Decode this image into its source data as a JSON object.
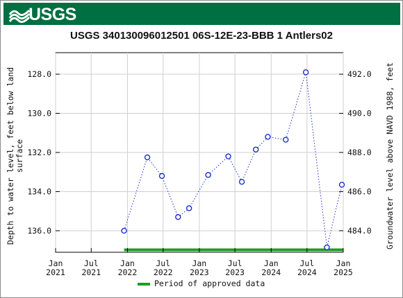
{
  "header": {
    "logo_text": "USGS",
    "brand_color": "#006f41",
    "logo_icon": "usgs-wave-icon"
  },
  "chart_data": {
    "type": "scatter",
    "title": "USGS 340130096012501 06S-12E-23-BBB 1 Antlers02",
    "ylabel_left_line1": "Depth to water level, feet below land",
    "ylabel_left_line2": "surface",
    "ylabel_right": "Groundwater level above NAVD 1988, feet",
    "y_left": {
      "range": [
        137.1,
        126.9
      ],
      "inverted": true,
      "ticks": [
        128.0,
        130.0,
        132.0,
        134.0,
        136.0
      ],
      "tick_labels": [
        "128.0",
        "130.0",
        "132.0",
        "134.0",
        "136.0"
      ]
    },
    "y_right": {
      "range": [
        482.9,
        493.1
      ],
      "ticks": [
        484.0,
        486.0,
        488.0,
        490.0,
        492.0
      ],
      "tick_labels": [
        "484.0",
        "486.0",
        "488.0",
        "490.0",
        "492.0"
      ]
    },
    "x_axis": {
      "range": [
        "2021-01-01",
        "2025-01-01"
      ],
      "ticks": [
        {
          "date": "2021-01-01",
          "line1": "Jan",
          "line2": "2021"
        },
        {
          "date": "2021-07-01",
          "line1": "Jul",
          "line2": "2021"
        },
        {
          "date": "2022-01-01",
          "line1": "Jan",
          "line2": "2022"
        },
        {
          "date": "2022-07-01",
          "line1": "Jul",
          "line2": "2022"
        },
        {
          "date": "2023-01-01",
          "line1": "Jan",
          "line2": "2023"
        },
        {
          "date": "2023-07-01",
          "line1": "Jul",
          "line2": "2023"
        },
        {
          "date": "2024-01-01",
          "line1": "Jan",
          "line2": "2024"
        },
        {
          "date": "2024-07-01",
          "line1": "Jul",
          "line2": "2024"
        },
        {
          "date": "2025-01-01",
          "line1": "Jan",
          "line2": "2025"
        }
      ]
    },
    "grid": true,
    "series": [
      {
        "style": "dotted line with open circle markers",
        "color": "#1a2ecc",
        "points": [
          {
            "date": "2021-12-15",
            "depth": 136.0
          },
          {
            "date": "2022-04-12",
            "depth": 132.25
          },
          {
            "date": "2022-06-25",
            "depth": 133.2
          },
          {
            "date": "2022-09-15",
            "depth": 135.3
          },
          {
            "date": "2022-11-10",
            "depth": 134.85
          },
          {
            "date": "2023-02-15",
            "depth": 133.15
          },
          {
            "date": "2023-05-28",
            "depth": 132.2
          },
          {
            "date": "2023-08-05",
            "depth": 133.5
          },
          {
            "date": "2023-10-15",
            "depth": 131.85
          },
          {
            "date": "2023-12-15",
            "depth": 131.2
          },
          {
            "date": "2024-03-15",
            "depth": 131.35
          },
          {
            "date": "2024-06-25",
            "depth": 127.9
          },
          {
            "date": "2024-10-10",
            "depth": 136.85
          },
          {
            "date": "2024-12-25",
            "depth": 133.65
          }
        ]
      }
    ],
    "approved_period": {
      "start": "2021-12-15",
      "end": "2024-12-30",
      "color": "#1e9c25"
    },
    "legend": {
      "label": "Period of approved data",
      "placement": "bottom"
    }
  }
}
